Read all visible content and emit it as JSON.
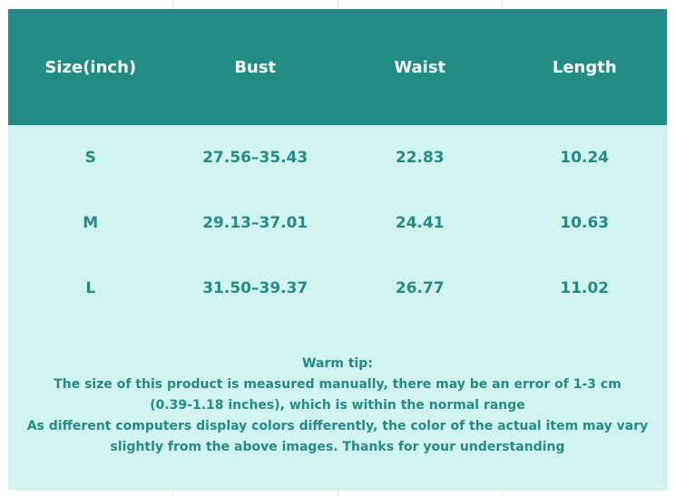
{
  "table": {
    "headers": [
      "Size(inch)",
      "Bust",
      "Waist",
      "Length"
    ],
    "rows": [
      [
        "S",
        "27.56–35.43",
        "22.83",
        "10.24"
      ],
      [
        "M",
        "29.13–37.01",
        "24.41",
        "10.63"
      ],
      [
        "L",
        "31.50–39.37",
        "26.77",
        "11.02"
      ]
    ]
  },
  "tip": {
    "title": "Warm tip:",
    "lines": [
      "The size of this product is measured manually, there may be an error of 1-3 cm",
      "(0.39-1.18 inches), which is within the normal range",
      "As different computers display colors differently, the color of the actual item may vary",
      "slightly from the above images. Thanks for your understanding"
    ]
  },
  "colors": {
    "header_bg": "#238d85",
    "body_bg": "#d2f4f1",
    "text": "#238d85"
  }
}
